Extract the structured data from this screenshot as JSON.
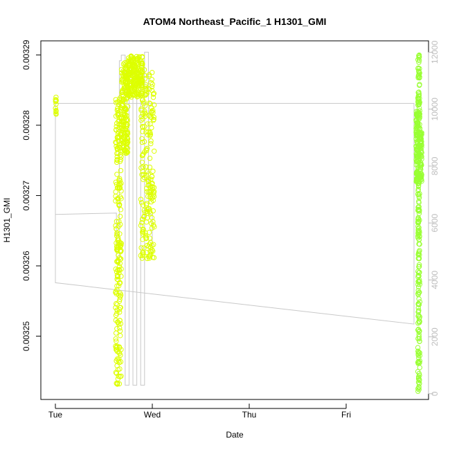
{
  "chart_data": {
    "type": "scatter",
    "title": "ATOM4 Northeast_Pacific_1 H1301_GMI",
    "xlabel": "Date",
    "ylabel": "H1301_GMI",
    "x_ticks": [
      "Tue",
      "Wed",
      "Thu",
      "Fri"
    ],
    "x_unit": "days since Tue 00:00",
    "xlim": [
      -0.15,
      3.85
    ],
    "ylim": [
      0.003241,
      0.003292
    ],
    "y_ticks": [
      0.00325,
      0.00326,
      0.00327,
      0.00328,
      0.00329
    ],
    "y_tick_labels": [
      "0.00325",
      "0.00326",
      "0.00327",
      "0.00328",
      "0.00329"
    ],
    "y2lim": [
      -200,
      12400
    ],
    "y2_ticks": [
      0,
      2000,
      4000,
      6000,
      8000,
      10000,
      12000
    ],
    "y2_tick_labels": [
      "0",
      "2000",
      "4000",
      "6000",
      "8000",
      "10000",
      "12000"
    ],
    "grid": false,
    "legend": "none",
    "colors": {
      "early_points": "#ddff00",
      "late_points": "#99ff33",
      "index_line": "#c8c8c8",
      "axis": "#000000",
      "right_axis": "#bdbdbd"
    },
    "series": [
      {
        "role": "points",
        "clusters": [
          {
            "x_range": [
              0.0,
              0.01
            ],
            "y_range": [
              0.003281,
              0.003284
            ],
            "density": 12,
            "color": "#ddff00"
          },
          {
            "x_range": [
              0.62,
              0.68
            ],
            "y_range": [
              0.003243,
              0.003284
            ],
            "density": 220,
            "color": "#ddff00"
          },
          {
            "x_range": [
              0.68,
              0.75
            ],
            "y_range": [
              0.003276,
              0.003289
            ],
            "density": 160,
            "color": "#ddff00"
          },
          {
            "x_range": [
              0.75,
              0.9
            ],
            "y_range": [
              0.003284,
              0.00329
            ],
            "density": 200,
            "color": "#ddff00"
          },
          {
            "x_range": [
              0.88,
              1.02
            ],
            "y_range": [
              0.003261,
              0.003288
            ],
            "density": 200,
            "color": "#ddff00"
          },
          {
            "x_range": [
              3.72,
              3.74
            ],
            "y_range": [
              0.003272,
              0.003282
            ],
            "density": 80,
            "color": "#99ff33"
          },
          {
            "x_range": [
              3.74,
              3.76
            ],
            "y_range": [
              0.003242,
              0.00329
            ],
            "density": 260,
            "color": "#99ff33"
          },
          {
            "x_range": [
              3.76,
              3.78
            ],
            "y_range": [
              0.003272,
              0.003279
            ],
            "density": 60,
            "color": "#99ff33"
          }
        ]
      },
      {
        "role": "index_line",
        "axis": "right",
        "x": [
          0.0,
          0.0,
          3.7,
          3.7,
          0.0,
          0.0,
          0.63,
          0.63,
          0.66,
          0.66,
          0.68,
          0.68,
          0.72,
          0.72,
          0.76,
          0.76,
          0.8,
          0.8,
          0.84,
          0.84,
          0.88,
          0.88,
          0.92,
          0.92,
          0.96,
          0.96,
          1.0,
          1.0
        ],
        "y": [
          10300,
          3900,
          2450,
          10200,
          10200,
          6300,
          6350,
          4600,
          4600,
          11700,
          11700,
          11900,
          11900,
          300,
          300,
          11500,
          11500,
          300,
          300,
          11300,
          11300,
          300,
          300,
          12000,
          12000,
          6300,
          6300,
          5000
        ]
      }
    ]
  }
}
